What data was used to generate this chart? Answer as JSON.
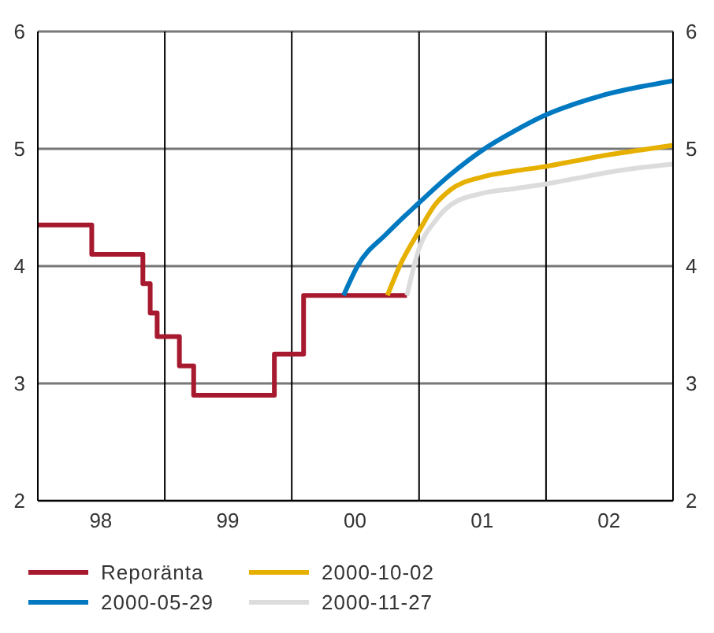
{
  "chart_data": {
    "type": "line",
    "xlim": [
      "1998-01-01",
      "2003-01-01"
    ],
    "xticks": [
      {
        "value": "1998-01-01",
        "label": null
      },
      {
        "value": "1998-07-01",
        "label": "98"
      },
      {
        "value": "1999-01-01",
        "label": null
      },
      {
        "value": "1999-07-01",
        "label": "99"
      },
      {
        "value": "2000-01-01",
        "label": null
      },
      {
        "value": "2000-07-01",
        "label": "00"
      },
      {
        "value": "2001-01-01",
        "label": null
      },
      {
        "value": "2001-07-01",
        "label": "01"
      },
      {
        "value": "2002-01-01",
        "label": null
      },
      {
        "value": "2002-07-01",
        "label": "02"
      },
      {
        "value": "2003-01-01",
        "label": null
      }
    ],
    "ylim": [
      2,
      6
    ],
    "yticks": [
      2,
      3,
      4,
      5,
      6
    ],
    "y2lim": [
      2,
      6
    ],
    "y2ticks": [
      2,
      3,
      4,
      5,
      6
    ],
    "grid": true,
    "legend": "bottom",
    "series": [
      {
        "name": "Reporänta",
        "type": "step",
        "color": "#a6192e",
        "x": [
          "1998-01-01",
          "1998-06-05",
          "1998-10-30",
          "1998-11-20",
          "1998-12-10",
          "1999-02-12",
          "1999-03-25",
          "1999-11-12",
          "2000-02-04",
          "2000-11-27"
        ],
        "values": [
          4.35,
          4.1,
          3.85,
          3.6,
          3.4,
          3.15,
          2.9,
          3.25,
          3.75,
          3.75
        ]
      },
      {
        "name": "2000-05-29",
        "type": "line",
        "color": "#0079c1",
        "x": [
          "2000-05-29",
          "2000-07-08",
          "2000-10-01",
          "2001-01-01",
          "2001-04-01",
          "2001-07-08",
          "2001-10-01",
          "2002-01-01",
          "2002-04-01",
          "2002-07-01",
          "2002-10-01",
          "2003-01-01"
        ],
        "values": [
          3.75,
          4,
          4.28,
          4.54,
          4.78,
          5,
          5.15,
          5.29,
          5.39,
          5.47,
          5.53,
          5.58
        ]
      },
      {
        "name": "2000-10-02",
        "type": "line",
        "color": "#e6b000",
        "x": [
          "2000-10-02",
          "2000-11-06",
          "2001-01-01",
          "2001-02-15",
          "2001-04-01",
          "2001-07-01",
          "2001-10-01",
          "2002-01-01",
          "2002-04-01",
          "2002-07-01",
          "2002-10-01",
          "2003-01-01"
        ],
        "values": [
          3.75,
          4,
          4.3,
          4.52,
          4.65,
          4.76,
          4.81,
          4.85,
          4.9,
          4.95,
          4.99,
          5.03
        ]
      },
      {
        "name": "2000-11-27",
        "type": "line",
        "color": "#dcdcdc",
        "x": [
          "2000-11-27",
          "2001-01-01",
          "2001-02-15",
          "2001-04-01",
          "2001-07-01",
          "2001-10-01",
          "2002-01-01",
          "2002-04-01",
          "2002-07-01",
          "2002-10-01",
          "2003-01-01"
        ],
        "values": [
          3.75,
          4.15,
          4.38,
          4.52,
          4.62,
          4.66,
          4.7,
          4.75,
          4.8,
          4.84,
          4.87
        ]
      }
    ]
  }
}
